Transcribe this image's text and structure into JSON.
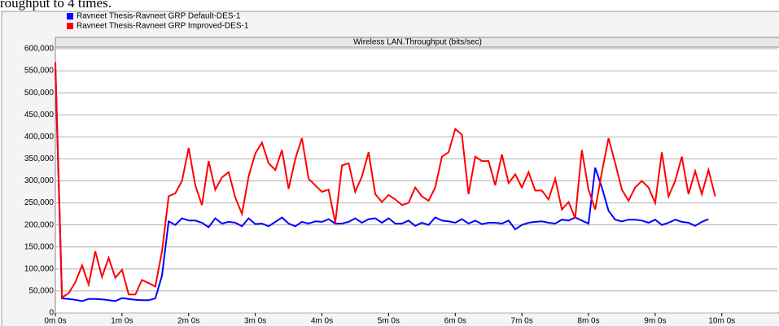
{
  "document_text": "roughput to 4 times.",
  "chart_data": {
    "type": "line",
    "title": "Wireless LAN.Throughput (bits/sec)",
    "legend": "top-left",
    "grid": true,
    "x": [
      0,
      6,
      12,
      18,
      24,
      30,
      36,
      42,
      48,
      54,
      60,
      66,
      72,
      78,
      84,
      90,
      96,
      102,
      108,
      114,
      120,
      126,
      132,
      138,
      144,
      150,
      156,
      162,
      168,
      174,
      180,
      186,
      192,
      198,
      204,
      210,
      216,
      222,
      228,
      234,
      240,
      246,
      252,
      258,
      264,
      270,
      276,
      282,
      288,
      294,
      300,
      306,
      312,
      318,
      324,
      330,
      336,
      342,
      348,
      354,
      360,
      366,
      372,
      378,
      384,
      390,
      396,
      402,
      408,
      414,
      420,
      426,
      432,
      438,
      444,
      450,
      456,
      462,
      468,
      474,
      480,
      486,
      492,
      498,
      504,
      510,
      516,
      522,
      528,
      534,
      540,
      546,
      552,
      558,
      564,
      570,
      576,
      582,
      588,
      594
    ],
    "xlim": [
      0,
      650
    ],
    "xticks": [
      {
        "value": 0,
        "label": "0m 0s"
      },
      {
        "value": 60,
        "label": "1m 0s"
      },
      {
        "value": 120,
        "label": "2m 0s"
      },
      {
        "value": 180,
        "label": "3m 0s"
      },
      {
        "value": 240,
        "label": "4m 0s"
      },
      {
        "value": 300,
        "label": "5m 0s"
      },
      {
        "value": 360,
        "label": "6m 0s"
      },
      {
        "value": 420,
        "label": "7m 0s"
      },
      {
        "value": 480,
        "label": "8m 0s"
      },
      {
        "value": 540,
        "label": "9m 0s"
      },
      {
        "value": 600,
        "label": "10m 0s"
      }
    ],
    "ylim": [
      0,
      600000
    ],
    "yticks": [
      0,
      {
        "value": 50000,
        "label": "50,000"
      },
      {
        "value": 100000,
        "label": "100,000"
      },
      {
        "value": 150000,
        "label": "150,000"
      },
      {
        "value": 200000,
        "label": "200,000"
      },
      {
        "value": 250000,
        "label": "250,000"
      },
      {
        "value": 300000,
        "label": "300,000"
      },
      {
        "value": 350000,
        "label": "350,000"
      },
      {
        "value": 400000,
        "label": "400,000"
      },
      {
        "value": 450000,
        "label": "450,000"
      },
      {
        "value": 500000,
        "label": "500,000"
      },
      {
        "value": 550000,
        "label": "550,000"
      },
      {
        "value": 600000,
        "label": "600,000"
      }
    ],
    "series": [
      {
        "name": "Ravneet Thesis-Ravneet GRP Default-DES-1",
        "color": "#0000ff",
        "values": [
          555000,
          33000,
          32000,
          30000,
          27000,
          32000,
          32000,
          31000,
          29000,
          27000,
          34000,
          32000,
          30000,
          29000,
          29000,
          33000,
          85000,
          208000,
          200000,
          215000,
          210000,
          210000,
          205000,
          195000,
          215000,
          203000,
          207000,
          205000,
          197000,
          215000,
          202000,
          203000,
          197000,
          207000,
          217000,
          203000,
          197000,
          207000,
          203000,
          208000,
          207000,
          213000,
          203000,
          203000,
          207000,
          215000,
          205000,
          213000,
          215000,
          205000,
          215000,
          203000,
          203000,
          210000,
          198000,
          205000,
          200000,
          217000,
          210000,
          208000,
          205000,
          213000,
          203000,
          210000,
          202000,
          205000,
          205000,
          203000,
          210000,
          190000,
          200000,
          205000,
          207000,
          208000,
          205000,
          203000,
          212000,
          210000,
          217000,
          210000,
          203000,
          330000,
          285000,
          232000,
          212000,
          208000,
          212000,
          212000,
          210000,
          205000,
          212000,
          200000,
          205000,
          212000,
          207000,
          205000,
          198000,
          207000,
          213000,
          null
        ]
      },
      {
        "name": "Ravneet Thesis-Ravneet GRP Improved-DES-1",
        "color": "#ff0000",
        "values": [
          570000,
          35000,
          45000,
          70000,
          108000,
          65000,
          140000,
          82000,
          125000,
          80000,
          98000,
          42000,
          42000,
          75000,
          68000,
          60000,
          140000,
          265000,
          272000,
          300000,
          375000,
          290000,
          245000,
          345000,
          280000,
          308000,
          320000,
          262000,
          225000,
          310000,
          362000,
          387000,
          340000,
          325000,
          370000,
          282000,
          350000,
          397000,
          305000,
          290000,
          275000,
          280000,
          205000,
          335000,
          340000,
          275000,
          310000,
          365000,
          270000,
          252000,
          268000,
          258000,
          245000,
          250000,
          285000,
          265000,
          255000,
          285000,
          355000,
          365000,
          418000,
          405000,
          270000,
          355000,
          345000,
          345000,
          290000,
          360000,
          295000,
          315000,
          285000,
          320000,
          278000,
          278000,
          258000,
          305000,
          235000,
          252000,
          215000,
          370000,
          280000,
          235000,
          320000,
          397000,
          340000,
          280000,
          255000,
          285000,
          300000,
          285000,
          250000,
          365000,
          265000,
          300000,
          355000,
          270000,
          322000,
          270000,
          325000,
          265000
        ]
      }
    ]
  }
}
